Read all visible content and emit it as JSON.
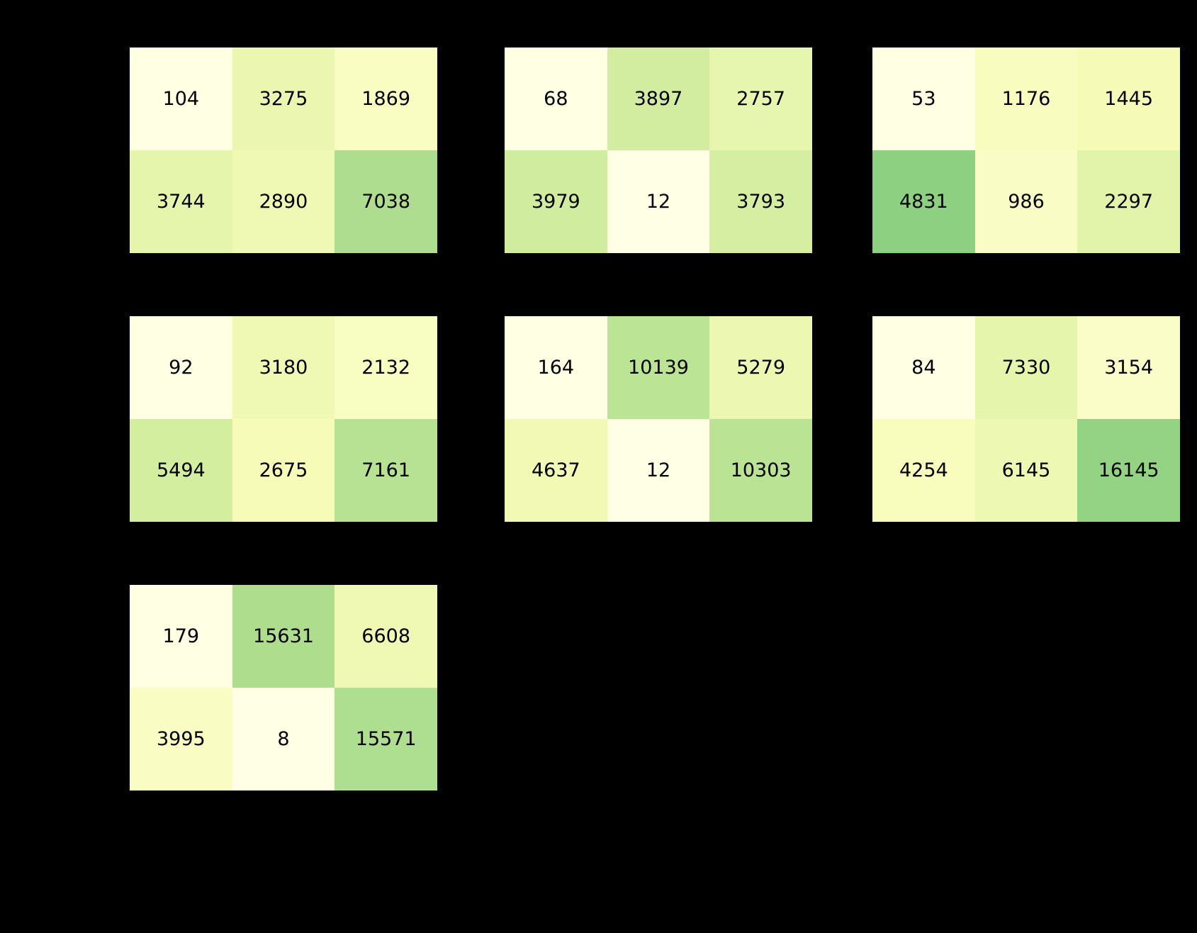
{
  "figure": {
    "background": "#000000",
    "annotation_text_color": "#000000",
    "panel_grid": {
      "rows": 3,
      "cols": 3,
      "occupied_panels": 7
    }
  },
  "colormap": {
    "name": "YlGn",
    "normalization": "cell value divided by panel total",
    "stops": [
      "#ffffe5",
      "#f7fcb9",
      "#d9f0a3",
      "#addd8e",
      "#78c679",
      "#41ab5d",
      "#238443",
      "#006837",
      "#004529"
    ]
  },
  "chart_data": [
    {
      "type": "heatmap",
      "grid_row": 0,
      "grid_col": 0,
      "rows": 2,
      "cols": 3,
      "values": [
        [
          104,
          3275,
          1869
        ],
        [
          3744,
          2890,
          7038
        ]
      ]
    },
    {
      "type": "heatmap",
      "grid_row": 0,
      "grid_col": 1,
      "rows": 2,
      "cols": 3,
      "values": [
        [
          68,
          3897,
          2757
        ],
        [
          3979,
          12,
          3793
        ]
      ]
    },
    {
      "type": "heatmap",
      "grid_row": 0,
      "grid_col": 2,
      "rows": 2,
      "cols": 3,
      "values": [
        [
          53,
          1176,
          1445
        ],
        [
          4831,
          986,
          2297
        ]
      ]
    },
    {
      "type": "heatmap",
      "grid_row": 1,
      "grid_col": 0,
      "rows": 2,
      "cols": 3,
      "values": [
        [
          92,
          3180,
          2132
        ],
        [
          5494,
          2675,
          7161
        ]
      ]
    },
    {
      "type": "heatmap",
      "grid_row": 1,
      "grid_col": 1,
      "rows": 2,
      "cols": 3,
      "values": [
        [
          164,
          10139,
          5279
        ],
        [
          4637,
          12,
          10303
        ]
      ]
    },
    {
      "type": "heatmap",
      "grid_row": 1,
      "grid_col": 2,
      "rows": 2,
      "cols": 3,
      "values": [
        [
          84,
          7330,
          3154
        ],
        [
          4254,
          6145,
          16145
        ]
      ]
    },
    {
      "type": "heatmap",
      "grid_row": 2,
      "grid_col": 0,
      "rows": 2,
      "cols": 3,
      "values": [
        [
          179,
          15631,
          6608
        ],
        [
          3995,
          8,
          15571
        ]
      ]
    }
  ]
}
